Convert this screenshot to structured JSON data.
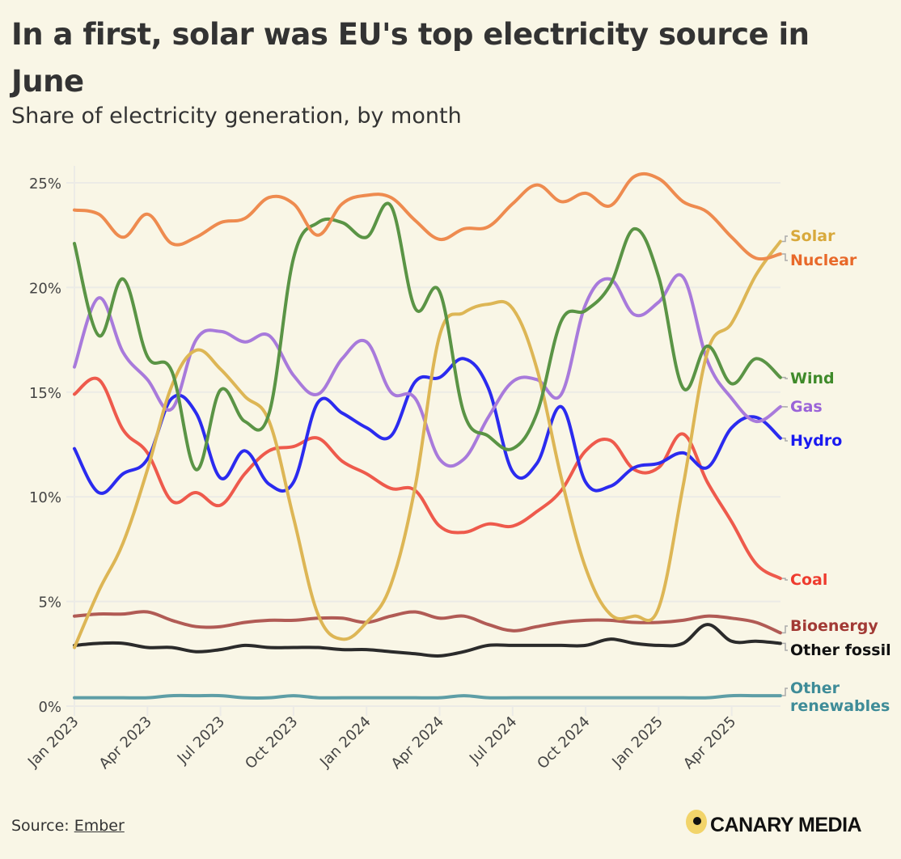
{
  "title": "In a first, solar was EU's top electricity source in June",
  "subtitle": "Share of electricity generation, by month",
  "source": {
    "prefix": "Source: ",
    "link_text": "Ember"
  },
  "logo": {
    "text": "CANARY MEDIA"
  },
  "chart_data": {
    "type": "line",
    "title": "In a first, solar was EU's top electricity source in June",
    "subtitle": "Share of electricity generation, by month",
    "xlabel": "",
    "ylabel": "",
    "ylim": [
      0,
      25
    ],
    "yticks": [
      0,
      5,
      10,
      15,
      20,
      25
    ],
    "ytick_labels": [
      "0%",
      "5%",
      "10%",
      "15%",
      "20%",
      "25%"
    ],
    "xtick_labels": [
      "Jan 2023",
      "Apr 2023",
      "Jul 2023",
      "Oct 2023",
      "Jan 2024",
      "Apr 2024",
      "Jul 2024",
      "Oct 2024",
      "Jan 2025",
      "Apr 2025"
    ],
    "xtick_month_index": [
      0,
      3,
      6,
      9,
      12,
      15,
      18,
      21,
      24,
      27
    ],
    "grid": true,
    "legend": "direct labels at right end of lines",
    "x": [
      "2023-01",
      "2023-02",
      "2023-03",
      "2023-04",
      "2023-05",
      "2023-06",
      "2023-07",
      "2023-08",
      "2023-09",
      "2023-10",
      "2023-11",
      "2023-12",
      "2024-01",
      "2024-02",
      "2024-03",
      "2024-04",
      "2024-05",
      "2024-06",
      "2024-07",
      "2024-08",
      "2024-09",
      "2024-10",
      "2024-11",
      "2024-12",
      "2025-01",
      "2025-02",
      "2025-03",
      "2025-04",
      "2025-05",
      "2025-06"
    ],
    "series": [
      {
        "name": "Solar",
        "color": "#ddb655",
        "label_color": "#d8a93c",
        "values": [
          2.8,
          5.5,
          7.8,
          11.3,
          15.3,
          17.0,
          16.1,
          14.8,
          13.6,
          9.0,
          4.4,
          3.2,
          4.0,
          5.8,
          10.5,
          17.7,
          18.8,
          19.2,
          19.0,
          16.1,
          10.9,
          6.6,
          4.4,
          4.3,
          4.7,
          10.5,
          16.9,
          18.3,
          20.6,
          22.2
        ]
      },
      {
        "name": "Nuclear",
        "color": "#ee8b4f",
        "label_color": "#e8692a",
        "values": [
          23.7,
          23.5,
          22.4,
          23.5,
          22.1,
          22.4,
          23.1,
          23.3,
          24.3,
          24.0,
          22.5,
          24.0,
          24.4,
          24.3,
          23.2,
          22.3,
          22.8,
          22.9,
          24.0,
          24.9,
          24.1,
          24.5,
          23.9,
          25.3,
          25.2,
          24.1,
          23.6,
          22.4,
          21.4,
          21.6
        ]
      },
      {
        "name": "Wind",
        "color": "#5a9445",
        "label_color": "#3f8a2a",
        "values": [
          22.1,
          17.7,
          20.4,
          16.7,
          16.0,
          11.3,
          15.1,
          13.6,
          14.0,
          21.4,
          23.1,
          23.1,
          22.4,
          23.9,
          19.0,
          19.8,
          14.0,
          12.9,
          12.3,
          14.0,
          18.4,
          18.9,
          20.1,
          22.8,
          20.5,
          15.2,
          17.2,
          15.4,
          16.6,
          15.7
        ]
      },
      {
        "name": "Gas",
        "color": "#a87adb",
        "label_color": "#9a63d8",
        "values": [
          16.2,
          19.5,
          16.9,
          15.6,
          14.2,
          17.5,
          17.9,
          17.4,
          17.7,
          15.8,
          14.9,
          16.6,
          17.4,
          15.0,
          14.7,
          11.8,
          11.8,
          13.8,
          15.5,
          15.6,
          14.9,
          19.2,
          20.4,
          18.7,
          19.3,
          20.5,
          16.5,
          14.7,
          13.6,
          14.3
        ]
      },
      {
        "name": "Hydro",
        "color": "#2b2bef",
        "label_color": "#1a1af0",
        "values": [
          12.3,
          10.2,
          11.1,
          11.8,
          14.7,
          14.0,
          10.9,
          12.2,
          10.6,
          10.7,
          14.5,
          14.0,
          13.3,
          12.9,
          15.5,
          15.7,
          16.6,
          15.2,
          11.2,
          11.6,
          14.3,
          10.7,
          10.5,
          11.4,
          11.6,
          12.1,
          11.4,
          13.3,
          13.8,
          12.8
        ]
      },
      {
        "name": "Coal",
        "color": "#ee5a4c",
        "label_color": "#ee3b2e",
        "values": [
          14.9,
          15.6,
          13.2,
          12.1,
          9.8,
          10.2,
          9.6,
          11.1,
          12.2,
          12.4,
          12.8,
          11.7,
          11.1,
          10.4,
          10.3,
          8.6,
          8.3,
          8.7,
          8.6,
          9.3,
          10.3,
          12.2,
          12.7,
          11.3,
          11.4,
          13.0,
          10.7,
          8.8,
          6.8,
          6.1
        ]
      },
      {
        "name": "Bioenergy",
        "color": "#b15b55",
        "label_color": "#a23a35",
        "values": [
          4.3,
          4.4,
          4.4,
          4.5,
          4.1,
          3.8,
          3.8,
          4.0,
          4.1,
          4.1,
          4.2,
          4.2,
          4.0,
          4.3,
          4.5,
          4.2,
          4.3,
          3.9,
          3.6,
          3.8,
          4.0,
          4.1,
          4.1,
          4.0,
          4.0,
          4.1,
          4.3,
          4.2,
          4.0,
          3.5
        ]
      },
      {
        "name": "Other fossil",
        "color": "#2b2b2b",
        "label_color": "#111111",
        "values": [
          2.9,
          3.0,
          3.0,
          2.8,
          2.8,
          2.6,
          2.7,
          2.9,
          2.8,
          2.8,
          2.8,
          2.7,
          2.7,
          2.6,
          2.5,
          2.4,
          2.6,
          2.9,
          2.9,
          2.9,
          2.9,
          2.9,
          3.2,
          3.0,
          2.9,
          3.0,
          3.9,
          3.1,
          3.1,
          3.0
        ]
      },
      {
        "name": "Other renewables",
        "label_lines": [
          "Other",
          "renewables"
        ],
        "color": "#5e9ea6",
        "label_color": "#3f8c98",
        "values": [
          0.4,
          0.4,
          0.4,
          0.4,
          0.5,
          0.5,
          0.5,
          0.4,
          0.4,
          0.5,
          0.4,
          0.4,
          0.4,
          0.4,
          0.4,
          0.4,
          0.5,
          0.4,
          0.4,
          0.4,
          0.4,
          0.4,
          0.4,
          0.4,
          0.4,
          0.4,
          0.4,
          0.5,
          0.5,
          0.5
        ]
      }
    ]
  }
}
